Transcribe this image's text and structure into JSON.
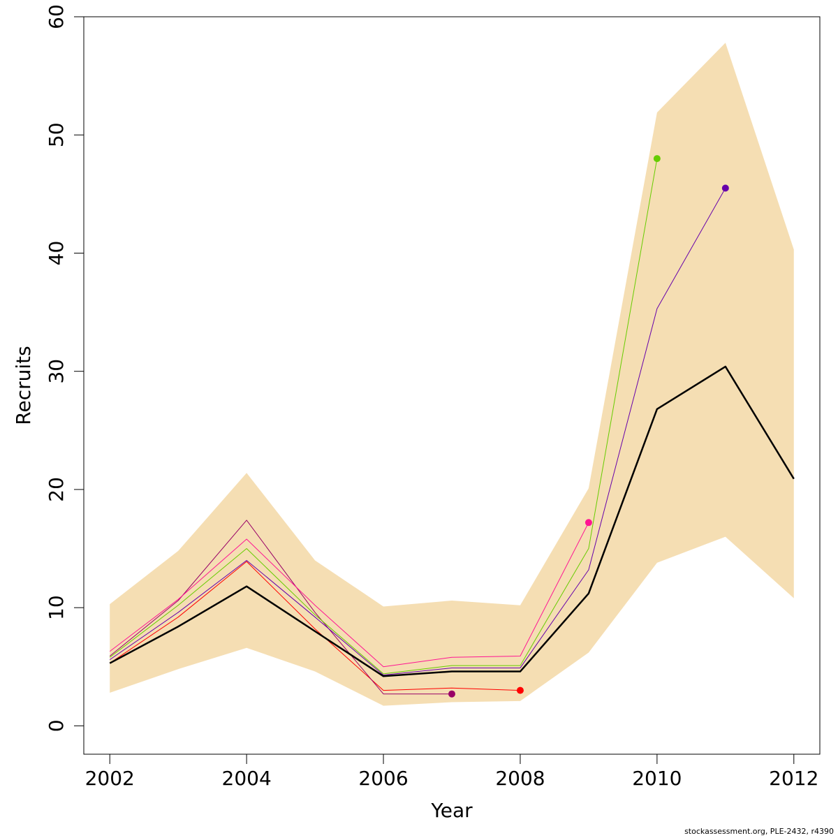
{
  "chart_data": {
    "type": "line",
    "title": "",
    "xlabel": "Year",
    "ylabel": "Recruits",
    "xlim": [
      2001.62,
      2012.38
    ],
    "ylim": [
      -2.4,
      60.0
    ],
    "xticks": [
      2002,
      2004,
      2006,
      2008,
      2010,
      2012
    ],
    "yticks": [
      0,
      10,
      20,
      30,
      40,
      50,
      60
    ],
    "grid": false,
    "legend": "none",
    "band": {
      "color": "#F5DEB3",
      "x": [
        2002,
        2003,
        2004,
        2005,
        2006,
        2007,
        2008,
        2009,
        2010,
        2011,
        2012
      ],
      "upper": [
        10.3,
        14.8,
        21.4,
        14.0,
        10.1,
        10.6,
        10.2,
        20.1,
        51.9,
        57.8,
        40.3
      ],
      "lower": [
        2.8,
        4.8,
        6.6,
        4.6,
        1.7,
        2.0,
        2.1,
        6.2,
        13.8,
        16.0,
        10.8
      ]
    },
    "series": [
      {
        "color": "#000000",
        "width": 2.5,
        "endpoint": false,
        "x": [
          2002,
          2003,
          2004,
          2005,
          2006,
          2007,
          2008,
          2009,
          2010,
          2011,
          2012
        ],
        "values": [
          5.3,
          8.4,
          11.8,
          8.0,
          4.2,
          4.6,
          4.6,
          11.2,
          26.8,
          30.4,
          20.9
        ]
      },
      {
        "color": "#FF0000",
        "width": 1,
        "endpoint": true,
        "x": [
          2002,
          2003,
          2004,
          2005,
          2006,
          2007,
          2008
        ],
        "values": [
          5.3,
          9.2,
          13.9,
          8.2,
          3.0,
          3.2,
          3.0
        ]
      },
      {
        "color": "#990066",
        "width": 1,
        "endpoint": true,
        "x": [
          2002,
          2003,
          2004,
          2005,
          2006,
          2007
        ],
        "values": [
          5.9,
          10.6,
          17.4,
          9.6,
          2.7,
          2.7
        ]
      },
      {
        "color": "#FF1493",
        "width": 1,
        "endpoint": true,
        "x": [
          2002,
          2003,
          2004,
          2005,
          2006,
          2007,
          2008,
          2009
        ],
        "values": [
          6.3,
          10.7,
          15.8,
          10.2,
          5.0,
          5.8,
          5.9,
          17.2
        ]
      },
      {
        "color": "#66CC00",
        "width": 1,
        "endpoint": true,
        "x": [
          2002,
          2003,
          2004,
          2005,
          2006,
          2007,
          2008,
          2009,
          2010
        ],
        "values": [
          5.8,
          10.2,
          15.0,
          9.4,
          4.4,
          5.1,
          5.1,
          15.0,
          48.0
        ]
      },
      {
        "color": "#6600AA",
        "width": 1,
        "endpoint": true,
        "x": [
          2002,
          2003,
          2004,
          2005,
          2006,
          2007,
          2008,
          2009,
          2010,
          2011
        ],
        "values": [
          5.6,
          9.6,
          14.0,
          9.2,
          4.3,
          4.9,
          4.9,
          13.2,
          35.3,
          45.5
        ]
      }
    ]
  },
  "footer": {
    "credit": "stockassessment.org, PLE-2432, r4390"
  }
}
